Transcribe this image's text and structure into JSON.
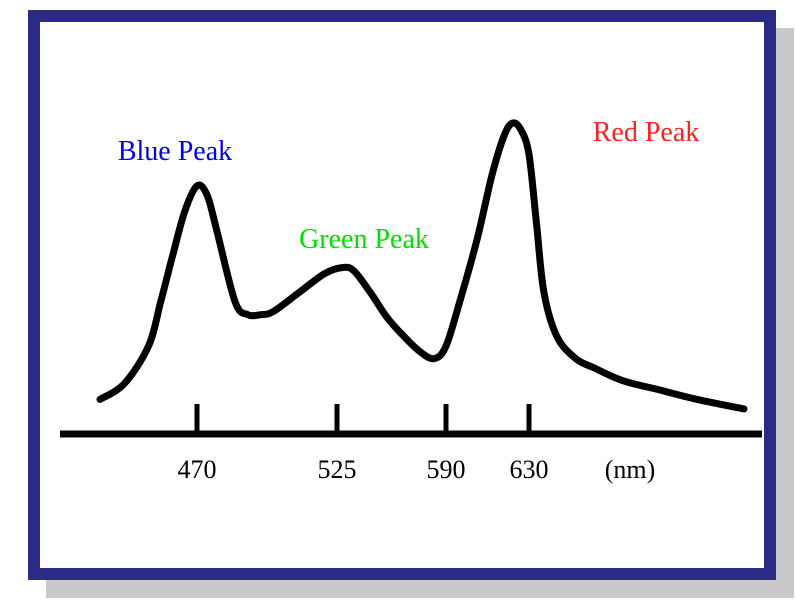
{
  "chart_data": {
    "type": "line",
    "title": "",
    "xlabel": "(nm)",
    "ylabel": "",
    "ticks": [
      "470",
      "525",
      "590",
      "630"
    ],
    "annotations": [
      {
        "text": "Blue Peak",
        "color": "#0000ee"
      },
      {
        "text": "Green Peak",
        "color": "#00dd00"
      },
      {
        "text": "Red Peak",
        "color": "#ff2020"
      }
    ],
    "x": [
      430,
      440,
      450,
      455,
      460,
      465,
      470,
      474,
      478,
      485,
      490,
      495,
      500,
      510,
      520,
      528,
      535,
      545,
      555,
      565,
      575,
      583,
      590,
      597,
      605,
      612,
      618,
      622,
      626,
      630,
      634,
      638,
      645,
      655,
      665,
      680,
      700,
      720,
      745
    ],
    "y": [
      0.04,
      0.09,
      0.21,
      0.35,
      0.5,
      0.64,
      0.72,
      0.69,
      0.57,
      0.35,
      0.31,
      0.31,
      0.32,
      0.38,
      0.44,
      0.46,
      0.45,
      0.38,
      0.3,
      0.24,
      0.19,
      0.17,
      0.21,
      0.36,
      0.55,
      0.75,
      0.88,
      0.92,
      0.9,
      0.82,
      0.6,
      0.38,
      0.24,
      0.17,
      0.14,
      0.1,
      0.07,
      0.04,
      0.01
    ],
    "xlim": [
      405,
      780
    ],
    "ylim": [
      0,
      1
    ],
    "grid": false,
    "legend": "none"
  }
}
